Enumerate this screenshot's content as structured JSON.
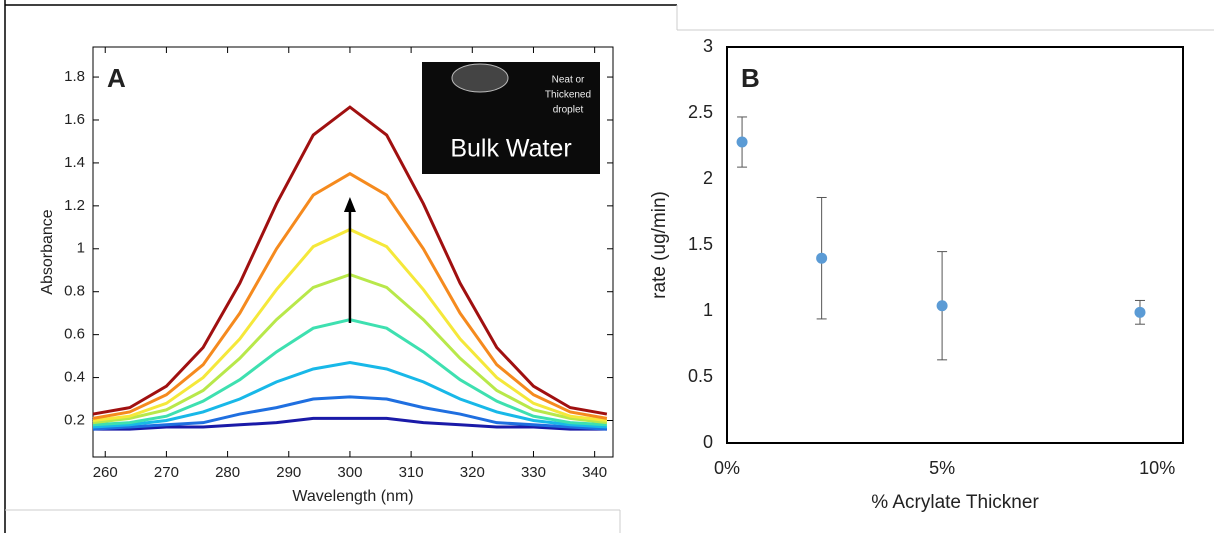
{
  "chart_data": [
    {
      "type": "line",
      "panel_label": "A",
      "x_label": "Wavelength (nm)",
      "y_label": "Absorbance",
      "x": [
        258,
        264,
        270,
        276,
        282,
        288,
        294,
        300,
        306,
        312,
        318,
        324,
        330,
        336,
        342
      ],
      "series": [
        {
          "color": "#1a1aa8",
          "values": [
            0.16,
            0.16,
            0.17,
            0.17,
            0.18,
            0.19,
            0.21,
            0.21,
            0.21,
            0.19,
            0.18,
            0.17,
            0.17,
            0.16,
            0.16
          ]
        },
        {
          "color": "#1f6fe0",
          "values": [
            0.16,
            0.17,
            0.18,
            0.19,
            0.23,
            0.26,
            0.3,
            0.31,
            0.3,
            0.26,
            0.23,
            0.19,
            0.18,
            0.17,
            0.16
          ]
        },
        {
          "color": "#18b8e8",
          "values": [
            0.17,
            0.18,
            0.2,
            0.24,
            0.3,
            0.38,
            0.44,
            0.47,
            0.44,
            0.38,
            0.3,
            0.24,
            0.2,
            0.18,
            0.17
          ]
        },
        {
          "color": "#3ee0b0",
          "values": [
            0.18,
            0.19,
            0.22,
            0.29,
            0.39,
            0.52,
            0.63,
            0.67,
            0.63,
            0.52,
            0.39,
            0.29,
            0.22,
            0.19,
            0.18
          ]
        },
        {
          "color": "#b8e84a",
          "values": [
            0.19,
            0.21,
            0.25,
            0.34,
            0.49,
            0.67,
            0.82,
            0.88,
            0.82,
            0.67,
            0.49,
            0.34,
            0.25,
            0.21,
            0.19
          ]
        },
        {
          "color": "#f5e83a",
          "values": [
            0.2,
            0.22,
            0.28,
            0.4,
            0.58,
            0.81,
            1.01,
            1.09,
            1.01,
            0.81,
            0.58,
            0.4,
            0.28,
            0.22,
            0.2
          ]
        },
        {
          "color": "#f58a1e",
          "values": [
            0.21,
            0.24,
            0.32,
            0.46,
            0.7,
            1.0,
            1.25,
            1.35,
            1.25,
            1.0,
            0.7,
            0.46,
            0.32,
            0.24,
            0.21
          ]
        },
        {
          "color": "#a01010",
          "values": [
            0.23,
            0.26,
            0.36,
            0.54,
            0.84,
            1.21,
            1.53,
            1.66,
            1.53,
            1.21,
            0.84,
            0.54,
            0.36,
            0.26,
            0.23
          ]
        }
      ],
      "xlim": [
        258,
        343
      ],
      "xticks": [
        260,
        270,
        280,
        290,
        300,
        310,
        320,
        330,
        340
      ],
      "ylim": [
        0.03,
        1.94
      ],
      "yticks": [
        0.2,
        0.4,
        0.6,
        0.8,
        1,
        1.2,
        1.4,
        1.6,
        1.8
      ],
      "inset": {
        "note": [
          "Neat or",
          "Thickened",
          "droplet"
        ],
        "label": "Bulk Water"
      }
    },
    {
      "type": "scatter",
      "panel_label": "B",
      "x_label": "% Acrylate Thickner",
      "y_label": "rate (ug/min)",
      "x": [
        0.35,
        2.2,
        5,
        9.6
      ],
      "values": [
        2.28,
        1.4,
        1.04,
        0.99
      ],
      "errors": [
        0.19,
        0.46,
        0.41,
        0.09
      ],
      "color": "#5b9bd5",
      "xlim": [
        0,
        10.6
      ],
      "xticks": [
        {
          "value": 0,
          "label": "0%"
        },
        {
          "value": 5,
          "label": "5%"
        },
        {
          "value": 10,
          "label": "10%"
        }
      ],
      "ylim": [
        0,
        3
      ],
      "yticks": [
        0,
        0.5,
        1,
        1.5,
        2,
        2.5,
        3
      ]
    }
  ]
}
